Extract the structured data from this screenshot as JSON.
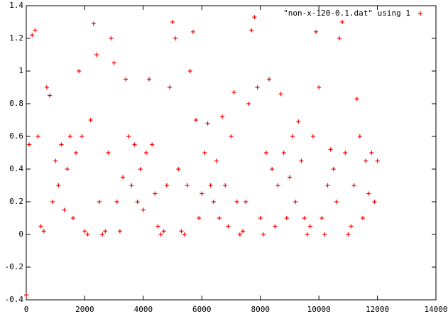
{
  "chart_data": {
    "type": "scatter",
    "series": [
      {
        "name": "\"non-x-120-0.1.dat\" using 1",
        "color": "#ff0000",
        "x": [
          0,
          100,
          200,
          300,
          400,
          500,
          600,
          700,
          800,
          900,
          1000,
          1100,
          1200,
          1300,
          1400,
          1500,
          1600,
          1700,
          1800,
          1900,
          2000,
          2100,
          2200,
          2300,
          2400,
          2500,
          2600,
          2700,
          2800,
          2900,
          3000,
          3100,
          3200,
          3300,
          3400,
          3500,
          3600,
          3700,
          3800,
          3900,
          4000,
          4100,
          4200,
          4300,
          4400,
          4500,
          4600,
          4700,
          4800,
          4900,
          5000,
          5100,
          5200,
          5300,
          5400,
          5500,
          5600,
          5700,
          5800,
          5900,
          6000,
          6100,
          6200,
          6300,
          6400,
          6500,
          6600,
          6700,
          6800,
          6900,
          7000,
          7100,
          7200,
          7300,
          7400,
          7500,
          7600,
          7700,
          7800,
          7900,
          8000,
          8100,
          8200,
          8300,
          8400,
          8500,
          8600,
          8700,
          8800,
          8900,
          9000,
          9100,
          9200,
          9300,
          9400,
          9500,
          9600,
          9700,
          9800,
          9900,
          10000,
          10100,
          10200,
          10300,
          10400,
          10500,
          10600,
          10700,
          10800,
          10900,
          11000,
          11100,
          11200,
          11300,
          11400,
          11500,
          11600,
          11700,
          11800,
          11900,
          12000
        ],
        "values": [
          -0.37,
          0.55,
          1.22,
          1.25,
          0.6,
          0.05,
          0.02,
          0.9,
          0.85,
          0.2,
          0.45,
          0.3,
          0.55,
          0.15,
          0.4,
          0.6,
          0.1,
          0.5,
          1.0,
          0.6,
          0.02,
          0.0,
          0.7,
          1.29,
          1.1,
          0.2,
          0.0,
          0.02,
          0.5,
          1.2,
          1.05,
          0.2,
          0.02,
          0.35,
          0.95,
          0.6,
          0.3,
          0.55,
          0.2,
          0.4,
          0.15,
          0.5,
          0.95,
          0.55,
          0.25,
          0.05,
          0.0,
          0.02,
          0.3,
          0.9,
          1.3,
          1.2,
          0.4,
          0.02,
          0.0,
          0.3,
          1.0,
          1.24,
          0.7,
          0.1,
          0.25,
          0.5,
          0.68,
          0.3,
          0.2,
          0.45,
          0.1,
          0.72,
          0.3,
          0.05,
          0.6,
          0.87,
          0.2,
          0.0,
          0.02,
          0.2,
          0.8,
          1.25,
          1.33,
          0.9,
          0.1,
          0.0,
          0.5,
          0.95,
          0.4,
          0.05,
          0.3,
          0.86,
          0.5,
          0.1,
          0.35,
          0.6,
          0.2,
          0.69,
          0.45,
          0.1,
          0.0,
          0.05,
          0.6,
          1.24,
          0.9,
          0.1,
          0.0,
          0.3,
          0.52,
          0.4,
          0.2,
          1.2,
          1.3,
          0.5,
          0.0,
          0.05,
          0.3,
          0.83,
          0.6,
          0.1,
          0.45,
          0.25,
          0.5,
          0.2,
          0.45
        ]
      }
    ],
    "xlim": [
      0,
      14000
    ],
    "xticks": [
      0,
      2000,
      4000,
      6000,
      8000,
      10000,
      12000,
      14000
    ],
    "ylim": [
      -0.4,
      1.4
    ],
    "yticks": [
      -0.4,
      -0.2,
      0,
      0.2,
      0.4,
      0.6,
      0.8,
      1,
      1.2,
      1.4
    ],
    "legend": "top-right",
    "grid": false
  }
}
